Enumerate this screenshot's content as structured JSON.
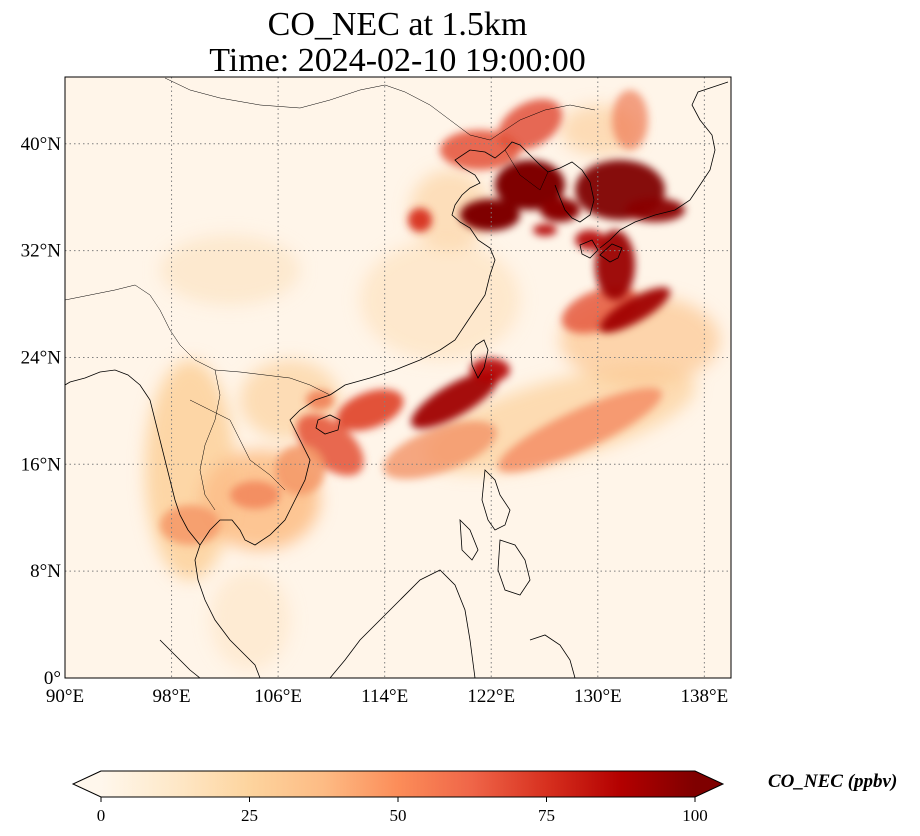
{
  "map": {
    "title_line1": "CO_NEC at 1.5km",
    "title_line2": "Time: 2024-02-10 19:00:00",
    "extent": {
      "lon_min": 90,
      "lon_max": 140,
      "lat_min": 0,
      "lat_max": 45
    },
    "lat_ticks": [
      {
        "value": 0,
        "label": "0°"
      },
      {
        "value": 8,
        "label": "8°N"
      },
      {
        "value": 16,
        "label": "16°N"
      },
      {
        "value": 24,
        "label": "24°N"
      },
      {
        "value": 32,
        "label": "32°N"
      },
      {
        "value": 40,
        "label": "40°N"
      }
    ],
    "lon_ticks": [
      {
        "value": 90,
        "label": "90°E"
      },
      {
        "value": 98,
        "label": "98°E"
      },
      {
        "value": 106,
        "label": "106°E"
      },
      {
        "value": 114,
        "label": "114°E"
      },
      {
        "value": 122,
        "label": "122°E"
      },
      {
        "value": 130,
        "label": "130°E"
      },
      {
        "value": 138,
        "label": "138°E"
      }
    ],
    "gridlines": true,
    "gridline_style": "dotted"
  },
  "colorbar": {
    "label": "CO_NEC (ppbv)",
    "min": 0,
    "max": 100,
    "ticks": [
      {
        "value": 0,
        "label": "0"
      },
      {
        "value": 25,
        "label": "25"
      },
      {
        "value": 50,
        "label": "50"
      },
      {
        "value": 75,
        "label": "75"
      },
      {
        "value": 100,
        "label": "100"
      }
    ],
    "colormap": "OrRd",
    "extend": "both",
    "stops": [
      "#fff7ec",
      "#fee8c8",
      "#fdd49e",
      "#fdbb84",
      "#fc8d59",
      "#ef6548",
      "#d7301f",
      "#b30000",
      "#7f0000"
    ]
  },
  "colors": {
    "background_low": "#fff5e9",
    "high": "#7f0000",
    "coastline": "#000000",
    "gridline": "#808080"
  }
}
